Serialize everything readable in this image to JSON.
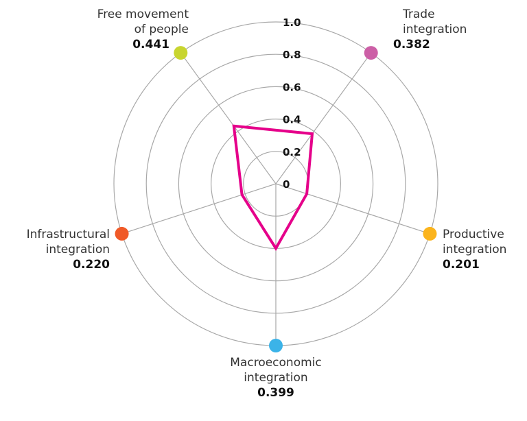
{
  "chart_data": {
    "type": "radar",
    "title": "",
    "center": [
      402,
      268
    ],
    "radius_px": 236,
    "range": [
      0,
      1.0
    ],
    "ticks": [
      "0",
      "0.2",
      "0.4",
      "0.6",
      "0.8",
      "1.0"
    ],
    "grid": true,
    "series_color": "#e5008a",
    "axes": [
      {
        "line1": "Free movement",
        "line2": "of people",
        "value": 0.441,
        "value_label": "0.441",
        "color": "#c8d530",
        "angle": -36
      },
      {
        "line1": "Trade",
        "line2": "integration",
        "value": 0.382,
        "value_label": "0.382",
        "color": "#cc5fa6",
        "angle": 36
      },
      {
        "line1": "Productive",
        "line2": "integration",
        "value": 0.201,
        "value_label": "0.201",
        "color": "#fbb41d",
        "angle": 108
      },
      {
        "line1": "Macroeconomic",
        "line2": "integration",
        "value": 0.399,
        "value_label": "0.399",
        "color": "#3bb3e8",
        "angle": 180
      },
      {
        "line1": "Infrastructural",
        "line2": "integration",
        "value": 0.22,
        "value_label": "0.220",
        "color": "#f05a28",
        "angle": 252
      }
    ]
  }
}
